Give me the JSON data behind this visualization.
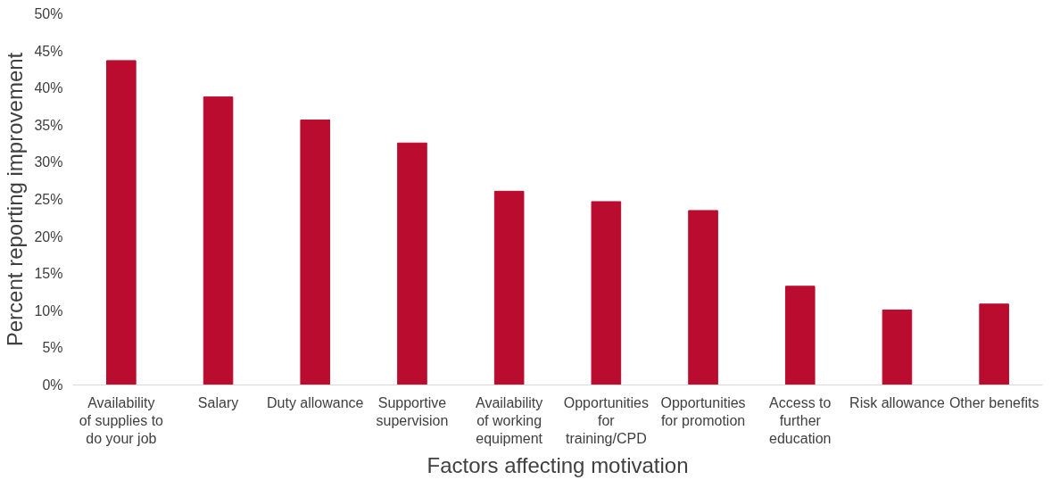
{
  "chart_data": {
    "type": "bar",
    "xlabel": "Factors affecting motivation",
    "ylabel": "Percent reporting improvement",
    "categories": [
      "Availability of supplies to do your job",
      "Salary",
      "Duty allowance",
      "Supportive supervision",
      "Availability of working equipment",
      "Opportunities for training/CPD",
      "Opportunities for promotion",
      "Access to further education",
      "Risk allowance",
      "Other benefits"
    ],
    "values": [
      43.7,
      38.8,
      35.7,
      32.6,
      26.1,
      24.7,
      23.5,
      13.3,
      10.1,
      10.9
    ],
    "color": "#ba0c2f",
    "ylim": [
      0,
      50
    ],
    "yticks": [
      {
        "value": 0,
        "label": "0%"
      },
      {
        "value": 5,
        "label": "5%"
      },
      {
        "value": 10,
        "label": "10%"
      },
      {
        "value": 15,
        "label": "15%"
      },
      {
        "value": 20,
        "label": "20%"
      },
      {
        "value": 25,
        "label": "25%"
      },
      {
        "value": 30,
        "label": "30%"
      },
      {
        "value": 35,
        "label": "35%"
      },
      {
        "value": 40,
        "label": "40%"
      },
      {
        "value": 45,
        "label": "45%"
      },
      {
        "value": 50,
        "label": "50%"
      }
    ],
    "grid": false
  }
}
